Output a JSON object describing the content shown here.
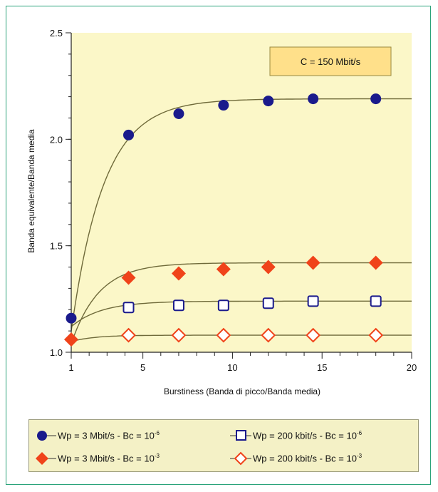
{
  "chart_data": {
    "type": "scatter",
    "annotation": "C = 150 Mbit/s",
    "xlabel": "Burstiness (Banda di picco/Banda media)",
    "ylabel": "Banda equivalente/Banda media",
    "xlim": [
      1,
      20
    ],
    "ylim": [
      1.0,
      2.5
    ],
    "x_ticks": [
      1,
      5,
      10,
      15,
      20
    ],
    "y_ticks": [
      "1.0",
      "1.5",
      "2.0",
      "2.5"
    ],
    "grid": false,
    "fitted_curves": true,
    "series": [
      {
        "name": "Wp = 3 Mbit/s - Bc = 10",
        "exponent": "-6",
        "marker": "filled-circle",
        "color": "#1a1a8c",
        "x": [
          1,
          4.2,
          7,
          9.5,
          12,
          14.5,
          18
        ],
        "y": [
          1.16,
          2.02,
          2.12,
          2.16,
          2.18,
          2.19,
          2.19
        ]
      },
      {
        "name": "Wp = 200 kbit/s - Bc = 10",
        "exponent": "-6",
        "marker": "open-square",
        "color": "#1a1a8c",
        "x": [
          4.2,
          7,
          9.5,
          12,
          14.5,
          18
        ],
        "y": [
          1.21,
          1.22,
          1.22,
          1.23,
          1.24,
          1.24
        ]
      },
      {
        "name": "Wp = 3 Mbit/s - Bc = 10",
        "exponent": "-3",
        "marker": "filled-diamond",
        "color": "#f0431a",
        "x": [
          1,
          4.2,
          7,
          9.5,
          12,
          14.5,
          18
        ],
        "y": [
          1.06,
          1.35,
          1.37,
          1.39,
          1.4,
          1.42,
          1.42
        ]
      },
      {
        "name": "Wp = 200 kbit/s - Bc = 10",
        "exponent": "-3",
        "marker": "open-diamond",
        "color": "#f0431a",
        "x": [
          4.2,
          7,
          9.5,
          12,
          14.5,
          18
        ],
        "y": [
          1.08,
          1.08,
          1.08,
          1.08,
          1.08,
          1.08
        ]
      }
    ]
  },
  "colors": {
    "plot_bg": "#fbf7c8",
    "frame": "#2aa37a",
    "legend_bg": "#f4f1c6",
    "curve": "#6f6a3a",
    "blue": "#1a1a8c",
    "red": "#f0431a"
  }
}
